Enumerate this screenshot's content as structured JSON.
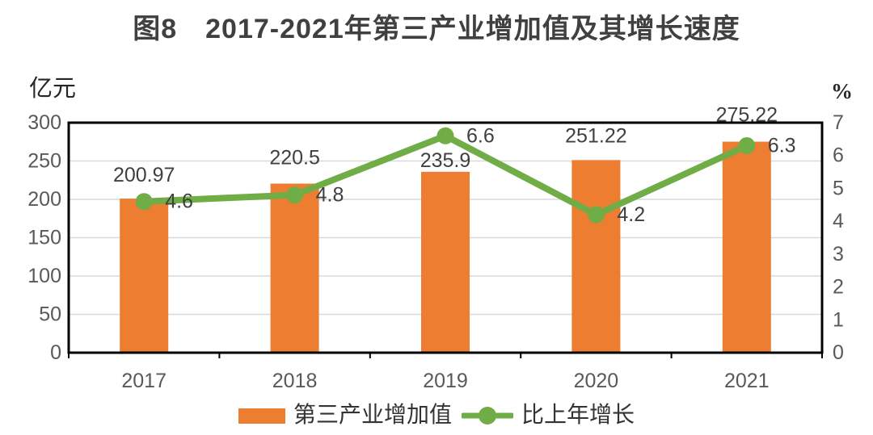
{
  "title": "图8　2017-2021年第三产业增加值及其增长速度",
  "chart_data": {
    "type": "combo-bar-line",
    "categories": [
      "2017",
      "2018",
      "2019",
      "2020",
      "2021"
    ],
    "series": [
      {
        "name": "第三产业增加值",
        "type": "bar",
        "axis": "left",
        "color": "#ED7D31",
        "values": [
          200.97,
          220.5,
          235.9,
          251.22,
          275.22
        ],
        "labels": [
          "200.97",
          "220.5",
          "235.9",
          "251.22",
          "275.22"
        ]
      },
      {
        "name": "比上年增长",
        "type": "line",
        "axis": "right",
        "color": "#70AD47",
        "values": [
          4.6,
          4.8,
          6.6,
          4.2,
          6.3
        ],
        "labels": [
          "4.6",
          "4.8",
          "6.6",
          "4.2",
          "6.3"
        ]
      }
    ],
    "left_axis": {
      "label": "亿元",
      "min": 0,
      "max": 300,
      "step": 50,
      "ticks": [
        "300",
        "250",
        "200",
        "150",
        "100",
        "50",
        "0"
      ]
    },
    "right_axis": {
      "label": "%",
      "min": 0,
      "max": 7,
      "step": 1,
      "ticks": [
        "7",
        "6",
        "5",
        "4",
        "3",
        "2",
        "1",
        "0"
      ]
    },
    "grid": true,
    "legend_position": "bottom",
    "data_labels": true
  },
  "colors": {
    "bar": "#ED7D31",
    "line": "#70AD47",
    "gridline": "#D9D9D9",
    "plot_border": "#000000",
    "axis_text": "#595959",
    "data_label_text": "#404040"
  }
}
